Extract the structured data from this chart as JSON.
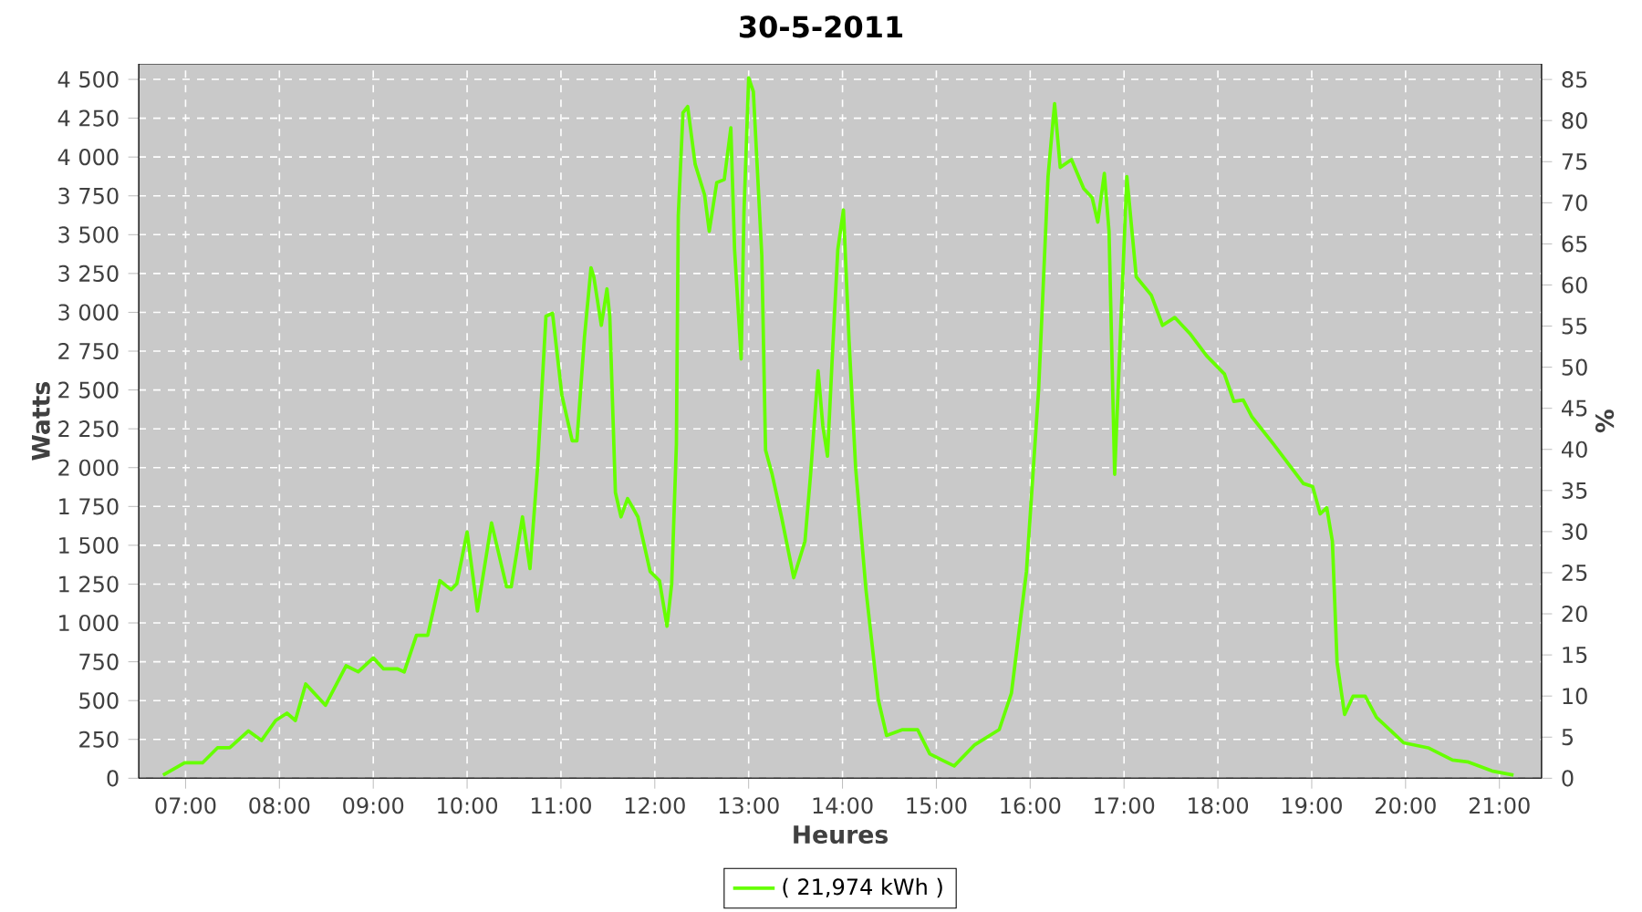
{
  "chart_data": {
    "type": "line",
    "title": "30-5-2011",
    "xlabel": "Heures",
    "ylabel": "Watts",
    "y2label": "%",
    "x": [
      6.76,
      6.99,
      7.18,
      7.34,
      7.47,
      7.67,
      7.81,
      7.96,
      8.08,
      8.17,
      8.28,
      8.49,
      8.71,
      8.84,
      9.0,
      9.11,
      9.26,
      9.33,
      9.46,
      9.58,
      9.71,
      9.83,
      9.89,
      10.0,
      10.11,
      10.26,
      10.42,
      10.47,
      10.59,
      10.67,
      10.75,
      10.84,
      10.91,
      11.01,
      11.12,
      11.17,
      11.25,
      11.32,
      11.35,
      11.43,
      11.49,
      11.52,
      11.58,
      11.64,
      11.71,
      11.82,
      11.95,
      12.05,
      12.13,
      12.18,
      12.23,
      12.25,
      12.3,
      12.35,
      12.43,
      12.53,
      12.58,
      12.66,
      12.74,
      12.81,
      12.85,
      12.92,
      12.95,
      13.0,
      13.05,
      13.14,
      13.18,
      13.25,
      13.35,
      13.48,
      13.6,
      13.66,
      13.74,
      13.79,
      13.84,
      13.89,
      13.95,
      14.01,
      14.07,
      14.14,
      14.25,
      14.38,
      14.47,
      14.64,
      14.8,
      14.93,
      15.06,
      15.19,
      15.41,
      15.67,
      15.8,
      15.96,
      16.09,
      16.19,
      16.26,
      16.32,
      16.44,
      16.57,
      16.66,
      16.72,
      16.79,
      16.84,
      16.9,
      17.03,
      17.13,
      17.29,
      17.41,
      17.54,
      17.71,
      17.88,
      18.07,
      18.17,
      18.27,
      18.36,
      18.59,
      18.91,
      19.01,
      19.09,
      19.16,
      19.22,
      19.27,
      19.35,
      19.44,
      19.57,
      19.69,
      19.98,
      20.24,
      20.5,
      20.66,
      20.92,
      21.15
    ],
    "series": [
      {
        "name": "( 21,974 kWh )",
        "color": "#66ff00",
        "values": [
          20,
          99,
          99,
          196,
          196,
          305,
          243,
          372,
          419,
          372,
          607,
          470,
          724,
          685,
          775,
          704,
          704,
          685,
          920,
          920,
          1272,
          1214,
          1253,
          1585,
          1077,
          1644,
          1233,
          1233,
          1683,
          1350,
          1996,
          2975,
          2994,
          2465,
          2172,
          2172,
          2838,
          3287,
          3229,
          2916,
          3151,
          2975,
          1840,
          1683,
          1801,
          1683,
          1331,
          1272,
          979,
          1253,
          2153,
          3620,
          4285,
          4325,
          3953,
          3757,
          3522,
          3835,
          3855,
          4188,
          3405,
          2700,
          3640,
          4510,
          4422,
          3366,
          2113,
          1957,
          1683,
          1291,
          1526,
          1957,
          2623,
          2270,
          2074,
          2700,
          3405,
          3659,
          2818,
          1996,
          1214,
          510,
          275,
          313,
          313,
          157,
          117,
          79,
          216,
          313,
          548,
          1331,
          2505,
          3874,
          4344,
          3933,
          3984,
          3797,
          3738,
          3581,
          3894,
          3522,
          1957,
          3874,
          3229,
          3111,
          2916,
          2967,
          2857,
          2720,
          2603,
          2427,
          2435,
          2329,
          2153,
          1898,
          1878,
          1702,
          1742,
          1526,
          744,
          411,
          528,
          528,
          392,
          228,
          196,
          117,
          106,
          47,
          20
        ]
      }
    ],
    "xlim": [
      6.5,
      21.45
    ],
    "ylim": [
      0,
      4600
    ],
    "y2lim": [
      0,
      86.9
    ],
    "xticks": [
      {
        "value": 7,
        "label": "07:00"
      },
      {
        "value": 8,
        "label": "08:00"
      },
      {
        "value": 9,
        "label": "09:00"
      },
      {
        "value": 10,
        "label": "10:00"
      },
      {
        "value": 11,
        "label": "11:00"
      },
      {
        "value": 12,
        "label": "12:00"
      },
      {
        "value": 13,
        "label": "13:00"
      },
      {
        "value": 14,
        "label": "14:00"
      },
      {
        "value": 15,
        "label": "15:00"
      },
      {
        "value": 16,
        "label": "16:00"
      },
      {
        "value": 17,
        "label": "17:00"
      },
      {
        "value": 18,
        "label": "18:00"
      },
      {
        "value": 19,
        "label": "19:00"
      },
      {
        "value": 20,
        "label": "20:00"
      },
      {
        "value": 21,
        "label": "21:00"
      }
    ],
    "yticks": [
      0,
      250,
      500,
      750,
      {
        "value": 1000,
        "label": "1 000"
      },
      {
        "value": 1250,
        "label": "1 250"
      },
      {
        "value": 1500,
        "label": "1 500"
      },
      {
        "value": 1750,
        "label": "1 750"
      },
      {
        "value": 2000,
        "label": "2 000"
      },
      {
        "value": 2250,
        "label": "2 250"
      },
      {
        "value": 2500,
        "label": "2 500"
      },
      {
        "value": 2750,
        "label": "2 750"
      },
      {
        "value": 3000,
        "label": "3 000"
      },
      {
        "value": 3250,
        "label": "3 250"
      },
      {
        "value": 3500,
        "label": "3 500"
      },
      {
        "value": 3750,
        "label": "3 750"
      },
      {
        "value": 4000,
        "label": "4 000"
      },
      {
        "value": 4250,
        "label": "4 250"
      },
      {
        "value": 4500,
        "label": "4 500"
      }
    ],
    "y2ticks": [
      0,
      5,
      10,
      15,
      20,
      25,
      30,
      35,
      40,
      45,
      50,
      55,
      60,
      65,
      70,
      75,
      80,
      85
    ],
    "grid": true,
    "legend": "bottom",
    "marker": "none",
    "line_style": "solid"
  }
}
